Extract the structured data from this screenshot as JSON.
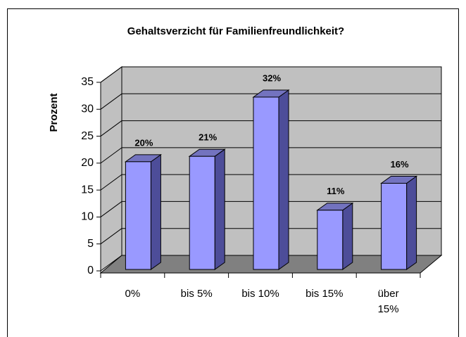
{
  "chart_data": {
    "type": "bar3d",
    "title": "Gehaltsverzicht für Familienfreundlichkeit?",
    "y_label": "Prozent",
    "categories": [
      "0%",
      "bis 5%",
      "bis 10%",
      "bis 15%",
      "über 15%"
    ],
    "values": [
      20,
      21,
      32,
      11,
      16
    ],
    "value_labels": [
      "20%",
      "21%",
      "32%",
      "11%",
      "16%"
    ],
    "color": "#9999ff",
    "ylim": [
      0,
      35
    ],
    "yticks": [
      0,
      5,
      10,
      15,
      20,
      25,
      30,
      35
    ],
    "grid": true
  }
}
